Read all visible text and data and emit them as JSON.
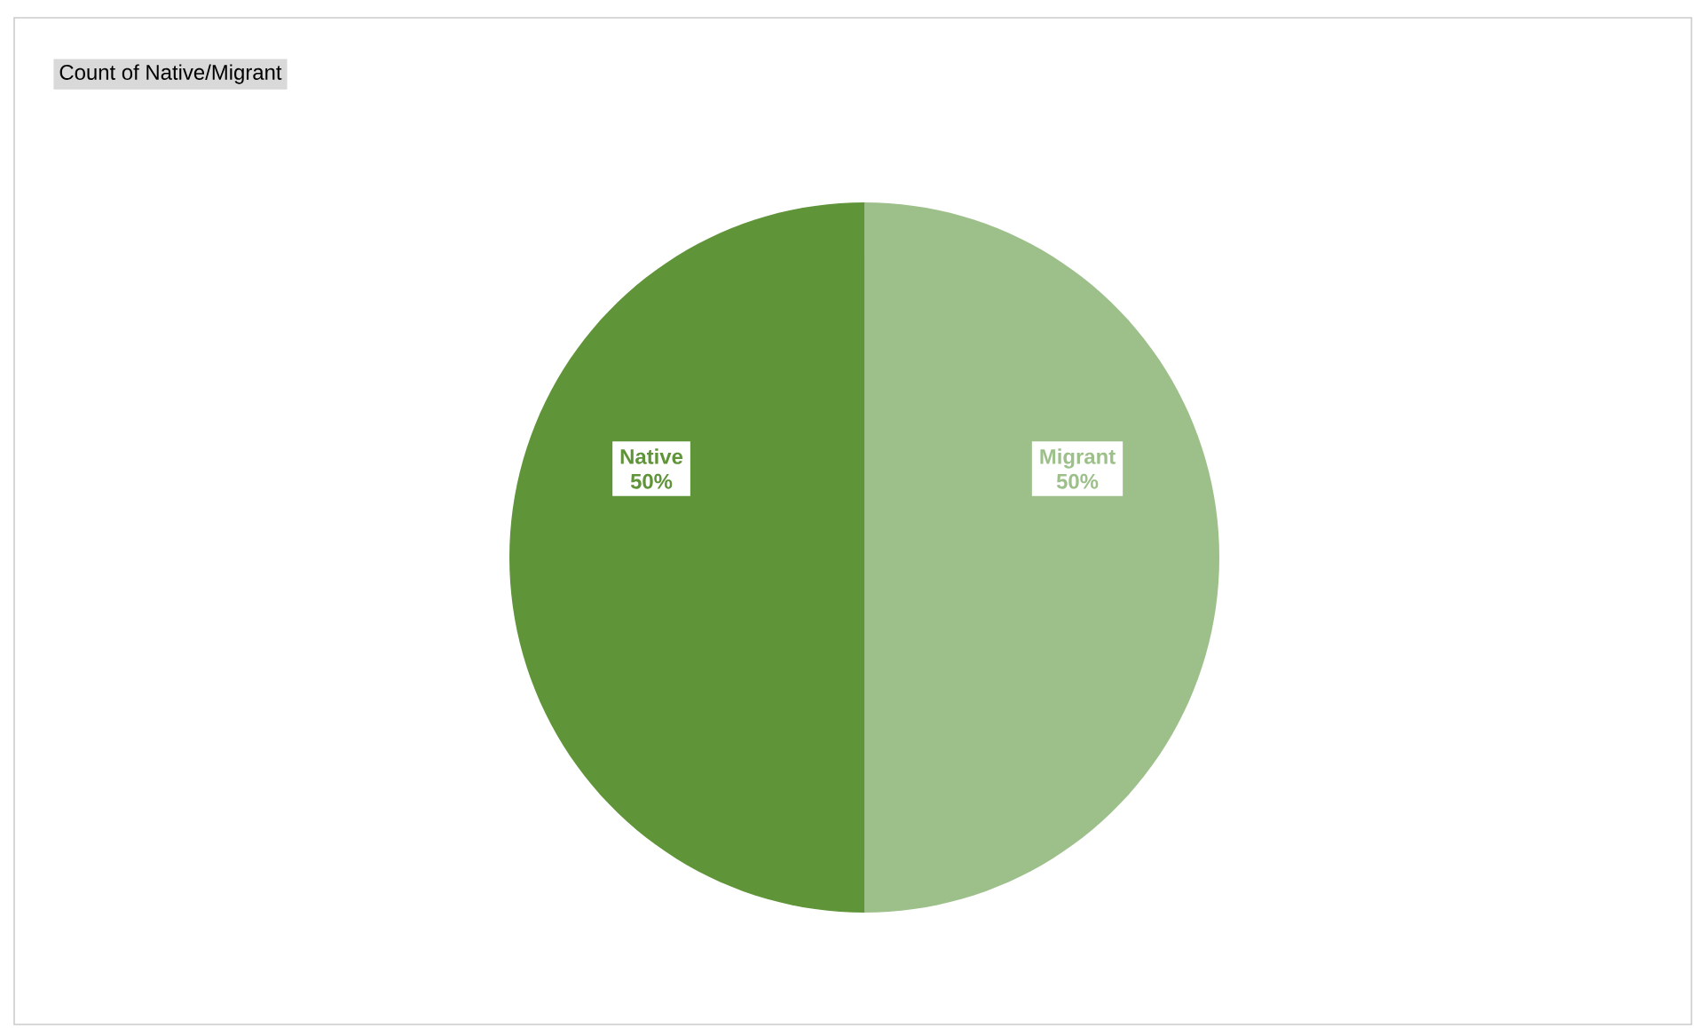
{
  "chart_data": {
    "type": "pie",
    "title": "Count of Native/Migrant",
    "categories": [
      "Migrant",
      "Native"
    ],
    "values": [
      50,
      50
    ],
    "colors": [
      "#9dc08b",
      "#5f9438"
    ],
    "value_labels": [
      "50%",
      "50%"
    ]
  }
}
